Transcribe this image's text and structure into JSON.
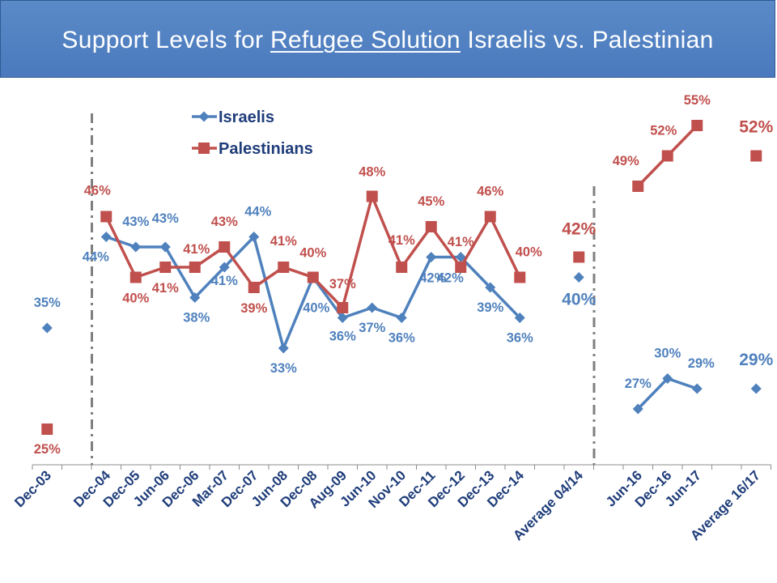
{
  "title": {
    "prefix": "Support Levels for ",
    "underlined": "Refugee Solution",
    "suffix": " Israelis vs. Palestinian"
  },
  "colors": {
    "israelis": "#4f81bd",
    "palestinians": "#c0504d",
    "title_bg": "#4f81bd"
  },
  "chart_data": {
    "type": "line",
    "title": "Support Levels for Refugee Solution Israelis vs. Palestinian",
    "xlabel": "",
    "ylabel": "",
    "ylim": [
      20,
      60
    ],
    "grid": false,
    "legend_position": "top-left",
    "categories": [
      "Dec-03",
      "",
      "Dec-04",
      "Dec-05",
      "Jun-06",
      "Dec-06",
      "Mar-07",
      "Dec-07",
      "Jun-08",
      "Dec-08",
      "Aug-09",
      "Jun-10",
      "Nov-10",
      "Dec-11",
      "Dec-12",
      "Dec-13",
      "Dec-14",
      "",
      "Average 04/14",
      "",
      "Jun-16",
      "Dec-16",
      "Jun-17",
      "",
      "Average 16/17"
    ],
    "series": [
      {
        "name": "Israelis",
        "segments": [
          {
            "points": [
              {
                "i": 0,
                "value": 35,
                "label": "35%"
              }
            ]
          },
          {
            "points": [
              {
                "i": 2,
                "value": 44,
                "label": "44%"
              },
              {
                "i": 3,
                "value": 43,
                "label": "43%"
              },
              {
                "i": 4,
                "value": 43,
                "label": "43%"
              },
              {
                "i": 5,
                "value": 38,
                "label": "38%"
              },
              {
                "i": 6,
                "value": 41,
                "label": "41%"
              },
              {
                "i": 7,
                "value": 44,
                "label": "44%"
              },
              {
                "i": 8,
                "value": 33,
                "label": "33%"
              },
              {
                "i": 9,
                "value": 40,
                "label": "40%"
              },
              {
                "i": 10,
                "value": 36,
                "label": "36%"
              },
              {
                "i": 11,
                "value": 37,
                "label": "37%"
              },
              {
                "i": 12,
                "value": 36,
                "label": "36%"
              },
              {
                "i": 13,
                "value": 42,
                "label": "42%"
              },
              {
                "i": 14,
                "value": 42,
                "label": "42%"
              },
              {
                "i": 15,
                "value": 39,
                "label": "39%"
              },
              {
                "i": 16,
                "value": 36,
                "label": "36%"
              }
            ]
          },
          {
            "points": [
              {
                "i": 18,
                "value": 40,
                "label": "40%",
                "big": true
              }
            ]
          },
          {
            "points": [
              {
                "i": 20,
                "value": 27,
                "label": "27%"
              },
              {
                "i": 21,
                "value": 30,
                "label": "30%"
              },
              {
                "i": 22,
                "value": 29,
                "label": "29%"
              }
            ]
          },
          {
            "points": [
              {
                "i": 24,
                "value": 29,
                "label": "29%",
                "big": true
              }
            ]
          }
        ]
      },
      {
        "name": "Palestinians",
        "segments": [
          {
            "points": [
              {
                "i": 0,
                "value": 25,
                "label": "25%"
              }
            ]
          },
          {
            "points": [
              {
                "i": 2,
                "value": 46,
                "label": "46%"
              },
              {
                "i": 3,
                "value": 40,
                "label": "40%"
              },
              {
                "i": 4,
                "value": 41,
                "label": "41%"
              },
              {
                "i": 5,
                "value": 41,
                "label": "41%"
              },
              {
                "i": 6,
                "value": 43,
                "label": "43%"
              },
              {
                "i": 7,
                "value": 39,
                "label": "39%"
              },
              {
                "i": 8,
                "value": 41,
                "label": "41%"
              },
              {
                "i": 9,
                "value": 40,
                "label": "40%"
              },
              {
                "i": 10,
                "value": 37,
                "label": "37%"
              },
              {
                "i": 11,
                "value": 48,
                "label": "48%"
              },
              {
                "i": 12,
                "value": 41,
                "label": "41%"
              },
              {
                "i": 13,
                "value": 45,
                "label": "45%"
              },
              {
                "i": 14,
                "value": 41,
                "label": "41%"
              },
              {
                "i": 15,
                "value": 46,
                "label": "46%"
              },
              {
                "i": 16,
                "value": 40,
                "label": "40%"
              }
            ]
          },
          {
            "points": [
              {
                "i": 18,
                "value": 42,
                "label": "42%",
                "big": true
              }
            ]
          },
          {
            "points": [
              {
                "i": 20,
                "value": 49,
                "label": "49%"
              },
              {
                "i": 21,
                "value": 52,
                "label": "52%"
              },
              {
                "i": 22,
                "value": 55,
                "label": "55%"
              }
            ]
          },
          {
            "points": [
              {
                "i": 24,
                "value": 52,
                "label": "52%",
                "big": true
              }
            ]
          }
        ]
      }
    ]
  }
}
